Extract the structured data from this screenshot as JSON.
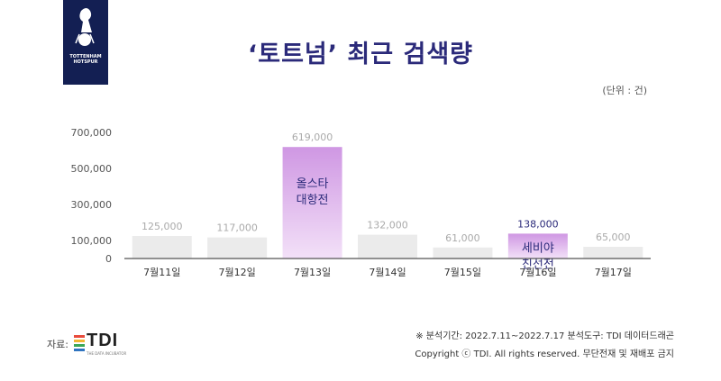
{
  "header": {
    "title": "‘토트넘’ 최근 검색량",
    "unit": "(단위 : 건)",
    "logo_text": "TOTTENHAM HOTSPUR"
  },
  "chart_data": {
    "type": "bar",
    "categories": [
      "7월11일",
      "7월12일",
      "7월13일",
      "7월14일",
      "7월15일",
      "7월16일",
      "7월17일"
    ],
    "values": [
      125000,
      117000,
      619000,
      132000,
      61000,
      138000,
      65000
    ],
    "value_labels": [
      "125,000",
      "117,000",
      "619,000",
      "132,000",
      "61,000",
      "138,000",
      "65,000"
    ],
    "y_ticks": [
      0,
      100000,
      300000,
      500000,
      700000
    ],
    "y_tick_labels": [
      "0",
      "100,000",
      "300,000",
      "500,000",
      "700,000"
    ],
    "highlights": [
      {
        "index": 2,
        "annotation": [
          "올스타",
          "대항전"
        ],
        "color": "#d49ee6"
      },
      {
        "index": 5,
        "annotation": [
          "세비야",
          "친선전"
        ],
        "color": "#d9a3ec"
      }
    ],
    "bar_color": "#ebebeb",
    "grid": false
  },
  "footer": {
    "source_label": "자료:",
    "source_logo": "TDI",
    "source_logo_sub": "THE DATA INCUBATOR",
    "period_note": "※ 분석기간: 2022.7.11~2022.7.17    분석도구: TDI 데이터드래곤",
    "copyright": "Copyright ⓒ TDI. All rights reserved. 무단전재 및 재배포 금지"
  }
}
